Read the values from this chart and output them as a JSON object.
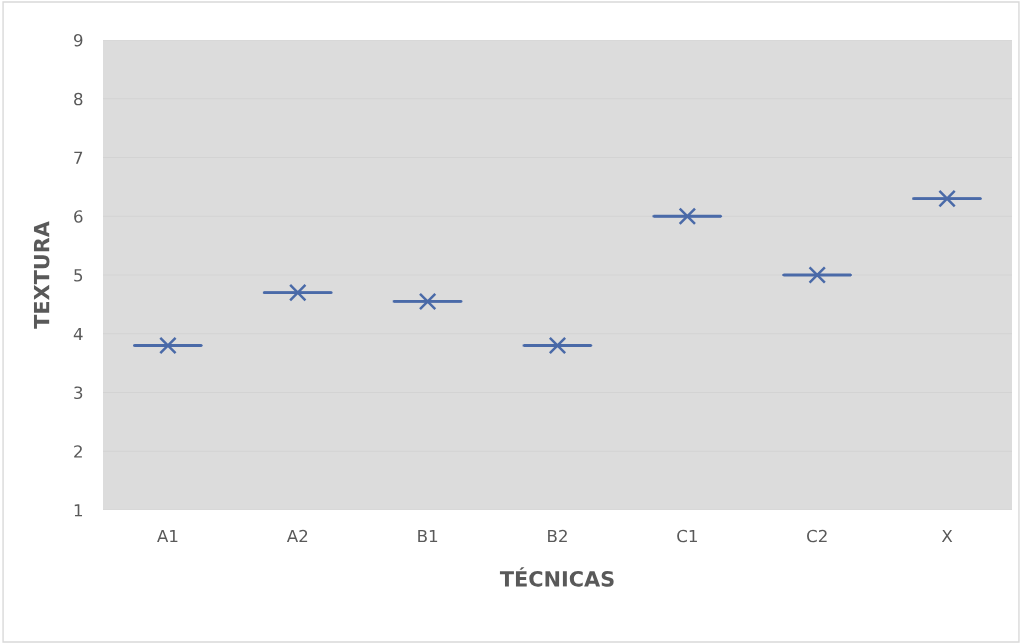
{
  "chart_data": {
    "type": "box",
    "xlabel": "TÉCNICAS",
    "ylabel": "TEXTURA",
    "categories": [
      "A1",
      "A2",
      "B1",
      "B2",
      "C1",
      "C2",
      "X"
    ],
    "boxes": [
      {
        "low": 3.8,
        "q1": 3.8,
        "median": 3.8,
        "q3": 3.8,
        "high": 3.8,
        "mean": 3.8
      },
      {
        "low": 4.7,
        "q1": 4.7,
        "median": 4.7,
        "q3": 4.7,
        "high": 4.7,
        "mean": 4.7
      },
      {
        "low": 4.55,
        "q1": 4.55,
        "median": 4.55,
        "q3": 4.55,
        "high": 4.55,
        "mean": 4.55
      },
      {
        "low": 3.8,
        "q1": 3.8,
        "median": 3.8,
        "q3": 3.8,
        "high": 3.8,
        "mean": 3.8
      },
      {
        "low": 6.0,
        "q1": 6.0,
        "median": 6.0,
        "q3": 6.0,
        "high": 6.0,
        "mean": 6.0
      },
      {
        "low": 5.0,
        "q1": 5.0,
        "median": 5.0,
        "q3": 5.0,
        "high": 5.0,
        "mean": 5.0
      },
      {
        "low": 6.3,
        "q1": 6.3,
        "median": 6.3,
        "q3": 6.3,
        "high": 6.3,
        "mean": 6.3
      }
    ],
    "color": "#4a6aa8",
    "ylim": [
      1,
      9
    ],
    "yticks": [
      1,
      2,
      3,
      4,
      5,
      6,
      7,
      8,
      9
    ],
    "grid": "y",
    "marker": "cross"
  }
}
